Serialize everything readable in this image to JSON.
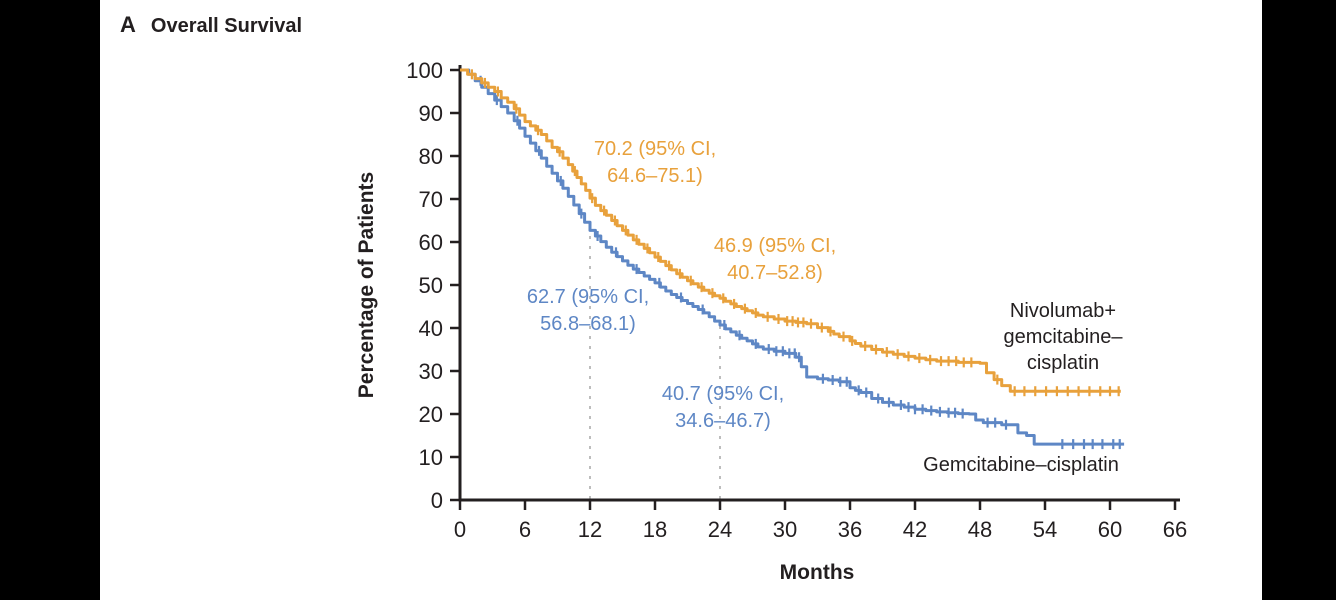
{
  "chart_data": {
    "type": "line",
    "subtype": "kaplan-meier-step",
    "panel_label": "A",
    "title": "Overall Survival",
    "xlabel": "Months",
    "ylabel": "Percentage of Patients",
    "xlim": [
      0,
      66
    ],
    "ylim": [
      0,
      100
    ],
    "x_ticks": [
      0,
      6,
      12,
      18,
      24,
      30,
      36,
      42,
      48,
      54,
      60,
      66
    ],
    "y_ticks": [
      0,
      10,
      20,
      30,
      40,
      50,
      60,
      70,
      80,
      90,
      100
    ],
    "grid": false,
    "reference_lines_months": [
      12,
      24
    ],
    "reference_line_color": "#BDBDBD",
    "axis_color": "#231F20",
    "series": [
      {
        "name": "Nivolumab+gemcitabine–cisplatin",
        "color": "#E8A13C",
        "points": [
          [
            0,
            100
          ],
          [
            0.7,
            99
          ],
          [
            1.4,
            98
          ],
          [
            2,
            97
          ],
          [
            2.6,
            96
          ],
          [
            3.2,
            95
          ],
          [
            3.8,
            93.5
          ],
          [
            4.4,
            92.5
          ],
          [
            5,
            91
          ],
          [
            5.5,
            89.5
          ],
          [
            6,
            88
          ],
          [
            6.5,
            87
          ],
          [
            7,
            86
          ],
          [
            7.5,
            85
          ],
          [
            8,
            83.5
          ],
          [
            8.5,
            82
          ],
          [
            9,
            81
          ],
          [
            9.5,
            79.5
          ],
          [
            10,
            78
          ],
          [
            10.4,
            76.5
          ],
          [
            10.8,
            75
          ],
          [
            11.2,
            73.5
          ],
          [
            11.6,
            72
          ],
          [
            12,
            70.2
          ],
          [
            12.5,
            68.5
          ],
          [
            13,
            67.3
          ],
          [
            13.5,
            66.2
          ],
          [
            14,
            65
          ],
          [
            14.5,
            63.8
          ],
          [
            15,
            62.7
          ],
          [
            15.5,
            61.6
          ],
          [
            16,
            60.5
          ],
          [
            16.5,
            59.5
          ],
          [
            17,
            58.5
          ],
          [
            17.5,
            57.5
          ],
          [
            18,
            56.5
          ],
          [
            18.5,
            55.5
          ],
          [
            19,
            54.5
          ],
          [
            19.5,
            53.5
          ],
          [
            20,
            52.6
          ],
          [
            20.5,
            51.8
          ],
          [
            21,
            51
          ],
          [
            21.5,
            50.3
          ],
          [
            22,
            49.5
          ],
          [
            22.5,
            48.8
          ],
          [
            23,
            48.1
          ],
          [
            23.5,
            47.5
          ],
          [
            24,
            46.9
          ],
          [
            24.5,
            46.2
          ],
          [
            25,
            45.6
          ],
          [
            25.5,
            45
          ],
          [
            26,
            44.5
          ],
          [
            26.5,
            44
          ],
          [
            27,
            43.5
          ],
          [
            27.5,
            43
          ],
          [
            28,
            42.6
          ],
          [
            29,
            42.1
          ],
          [
            30,
            41.6
          ],
          [
            31,
            41.3
          ],
          [
            32,
            41
          ],
          [
            33,
            40.1
          ],
          [
            34,
            39.2
          ],
          [
            34.5,
            38.6
          ],
          [
            35,
            38
          ],
          [
            36,
            37
          ],
          [
            36.5,
            36.4
          ],
          [
            37,
            35.8
          ],
          [
            38,
            35
          ],
          [
            39,
            34.4
          ],
          [
            40,
            33.9
          ],
          [
            41,
            33.4
          ],
          [
            42,
            33
          ],
          [
            43,
            32.6
          ],
          [
            44,
            32.3
          ],
          [
            46,
            32
          ],
          [
            48,
            31.8
          ],
          [
            48.6,
            29.6
          ],
          [
            49.3,
            28
          ],
          [
            50,
            26.6
          ],
          [
            50.8,
            25.3
          ],
          [
            61,
            25.3
          ]
        ],
        "censor_times": [
          1.1,
          2.3,
          3.5,
          5.2,
          7.2,
          9.2,
          10.6,
          12.2,
          13.3,
          14.3,
          15.3,
          16.3,
          17.3,
          18.3,
          19.3,
          20.3,
          21.3,
          22.3,
          23.3,
          24.3,
          25.3,
          26.3,
          27.3,
          28.4,
          29.4,
          30.2,
          30.7,
          31.2,
          31.7,
          32.4,
          33.4,
          34.2,
          35.4,
          36.2,
          37.4,
          38.4,
          39.4,
          40.4,
          41.4,
          42.4,
          43.4,
          44.4,
          45.1,
          45.8,
          46.5,
          47.2,
          49.6,
          51.2,
          52.1,
          53.1,
          54.1,
          55.1,
          56.1,
          57.1,
          58.1,
          59.1,
          60,
          60.8
        ]
      },
      {
        "name": "Gemcitabine–cisplatin",
        "color": "#5E87C5",
        "points": [
          [
            0,
            100
          ],
          [
            0.8,
            99
          ],
          [
            1.4,
            97.5
          ],
          [
            2,
            96
          ],
          [
            2.6,
            94.5
          ],
          [
            3.2,
            93
          ],
          [
            3.8,
            91.5
          ],
          [
            4.4,
            90
          ],
          [
            5,
            88.2
          ],
          [
            5.5,
            86.5
          ],
          [
            6,
            84.6
          ],
          [
            6.5,
            83
          ],
          [
            7,
            81.2
          ],
          [
            7.5,
            79.5
          ],
          [
            8,
            77.6
          ],
          [
            8.5,
            76
          ],
          [
            9,
            74.2
          ],
          [
            9.5,
            72.5
          ],
          [
            10,
            70.6
          ],
          [
            10.5,
            68.6
          ],
          [
            11,
            66.6
          ],
          [
            11.5,
            64.6
          ],
          [
            12,
            62.7
          ],
          [
            12.5,
            61.4
          ],
          [
            13,
            60.1
          ],
          [
            13.5,
            58.8
          ],
          [
            14,
            57.6
          ],
          [
            14.5,
            56.6
          ],
          [
            15,
            55.6
          ],
          [
            15.5,
            54.6
          ],
          [
            16,
            53.7
          ],
          [
            16.5,
            52.9
          ],
          [
            17,
            52.1
          ],
          [
            17.5,
            51.3
          ],
          [
            18,
            50.5
          ],
          [
            18.5,
            49.5
          ],
          [
            19,
            48.6
          ],
          [
            19.5,
            47.8
          ],
          [
            20,
            47.1
          ],
          [
            20.5,
            46.4
          ],
          [
            21,
            45.7
          ],
          [
            21.5,
            45
          ],
          [
            22,
            44.3
          ],
          [
            22.5,
            43.5
          ],
          [
            23,
            42.6
          ],
          [
            23.5,
            41.6
          ],
          [
            24,
            40.7
          ],
          [
            24.5,
            39.8
          ],
          [
            25,
            39.1
          ],
          [
            25.5,
            38.3
          ],
          [
            26,
            37.6
          ],
          [
            26.5,
            37
          ],
          [
            27,
            36.3
          ],
          [
            27.5,
            35.6
          ],
          [
            28,
            35.1
          ],
          [
            29,
            34.6
          ],
          [
            30,
            34.1
          ],
          [
            31,
            33.2
          ],
          [
            31.5,
            31
          ],
          [
            32,
            28.6
          ],
          [
            33,
            28.2
          ],
          [
            34,
            27.9
          ],
          [
            35,
            27.5
          ],
          [
            36,
            26.1
          ],
          [
            36.5,
            25.5
          ],
          [
            37,
            25
          ],
          [
            38,
            23.6
          ],
          [
            39,
            22.7
          ],
          [
            40,
            22.1
          ],
          [
            41,
            21.6
          ],
          [
            42,
            21.1
          ],
          [
            43,
            20.8
          ],
          [
            44,
            20.5
          ],
          [
            45,
            20.3
          ],
          [
            46,
            20.1
          ],
          [
            47,
            20
          ],
          [
            47.6,
            18.6
          ],
          [
            48.3,
            18
          ],
          [
            50,
            17.5
          ],
          [
            51.5,
            15.6
          ],
          [
            52.3,
            15
          ],
          [
            53,
            13
          ],
          [
            61.3,
            13
          ]
        ],
        "censor_times": [
          1.9,
          3.4,
          5.3,
          7.3,
          9.3,
          11.2,
          12.7,
          14.4,
          16.3,
          18.4,
          20.4,
          22.4,
          24.4,
          25.8,
          27.3,
          28.5,
          29.2,
          29.8,
          30.4,
          30.9,
          31.3,
          33.5,
          34.4,
          35.1,
          35.7,
          36.8,
          37.5,
          38.6,
          39.6,
          40.7,
          41.4,
          42,
          42.7,
          43.5,
          44.3,
          45.1,
          45.7,
          46.4,
          48.7,
          49.4,
          50.4,
          55.6,
          56.6,
          57.6,
          58.4,
          59.3,
          60.3,
          60.9
        ]
      }
    ],
    "annotations": [
      {
        "series": "nivolumab",
        "month": 12,
        "value": 70.2,
        "color": "#E8A13C",
        "line1": "70.2 (95% CI,",
        "line2": "64.6–75.1)"
      },
      {
        "series": "nivolumab",
        "month": 24,
        "value": 46.9,
        "color": "#E8A13C",
        "line1": "46.9 (95% CI,",
        "line2": "40.7–52.8)"
      },
      {
        "series": "gemcitabine",
        "month": 12,
        "value": 62.7,
        "color": "#5E87C5",
        "line1": "62.7 (95% CI,",
        "line2": "56.8–68.1)"
      },
      {
        "series": "gemcitabine",
        "month": 24,
        "value": 40.7,
        "color": "#5E87C5",
        "line1": "40.7 (95% CI,",
        "line2": "34.6–46.7)"
      }
    ],
    "legend": {
      "nivolumab_lines": [
        "Nivolumab+",
        "gemcitabine–",
        "cisplatin"
      ],
      "gemcitabine_lines": [
        "Gemcitabine–cisplatin"
      ]
    }
  }
}
